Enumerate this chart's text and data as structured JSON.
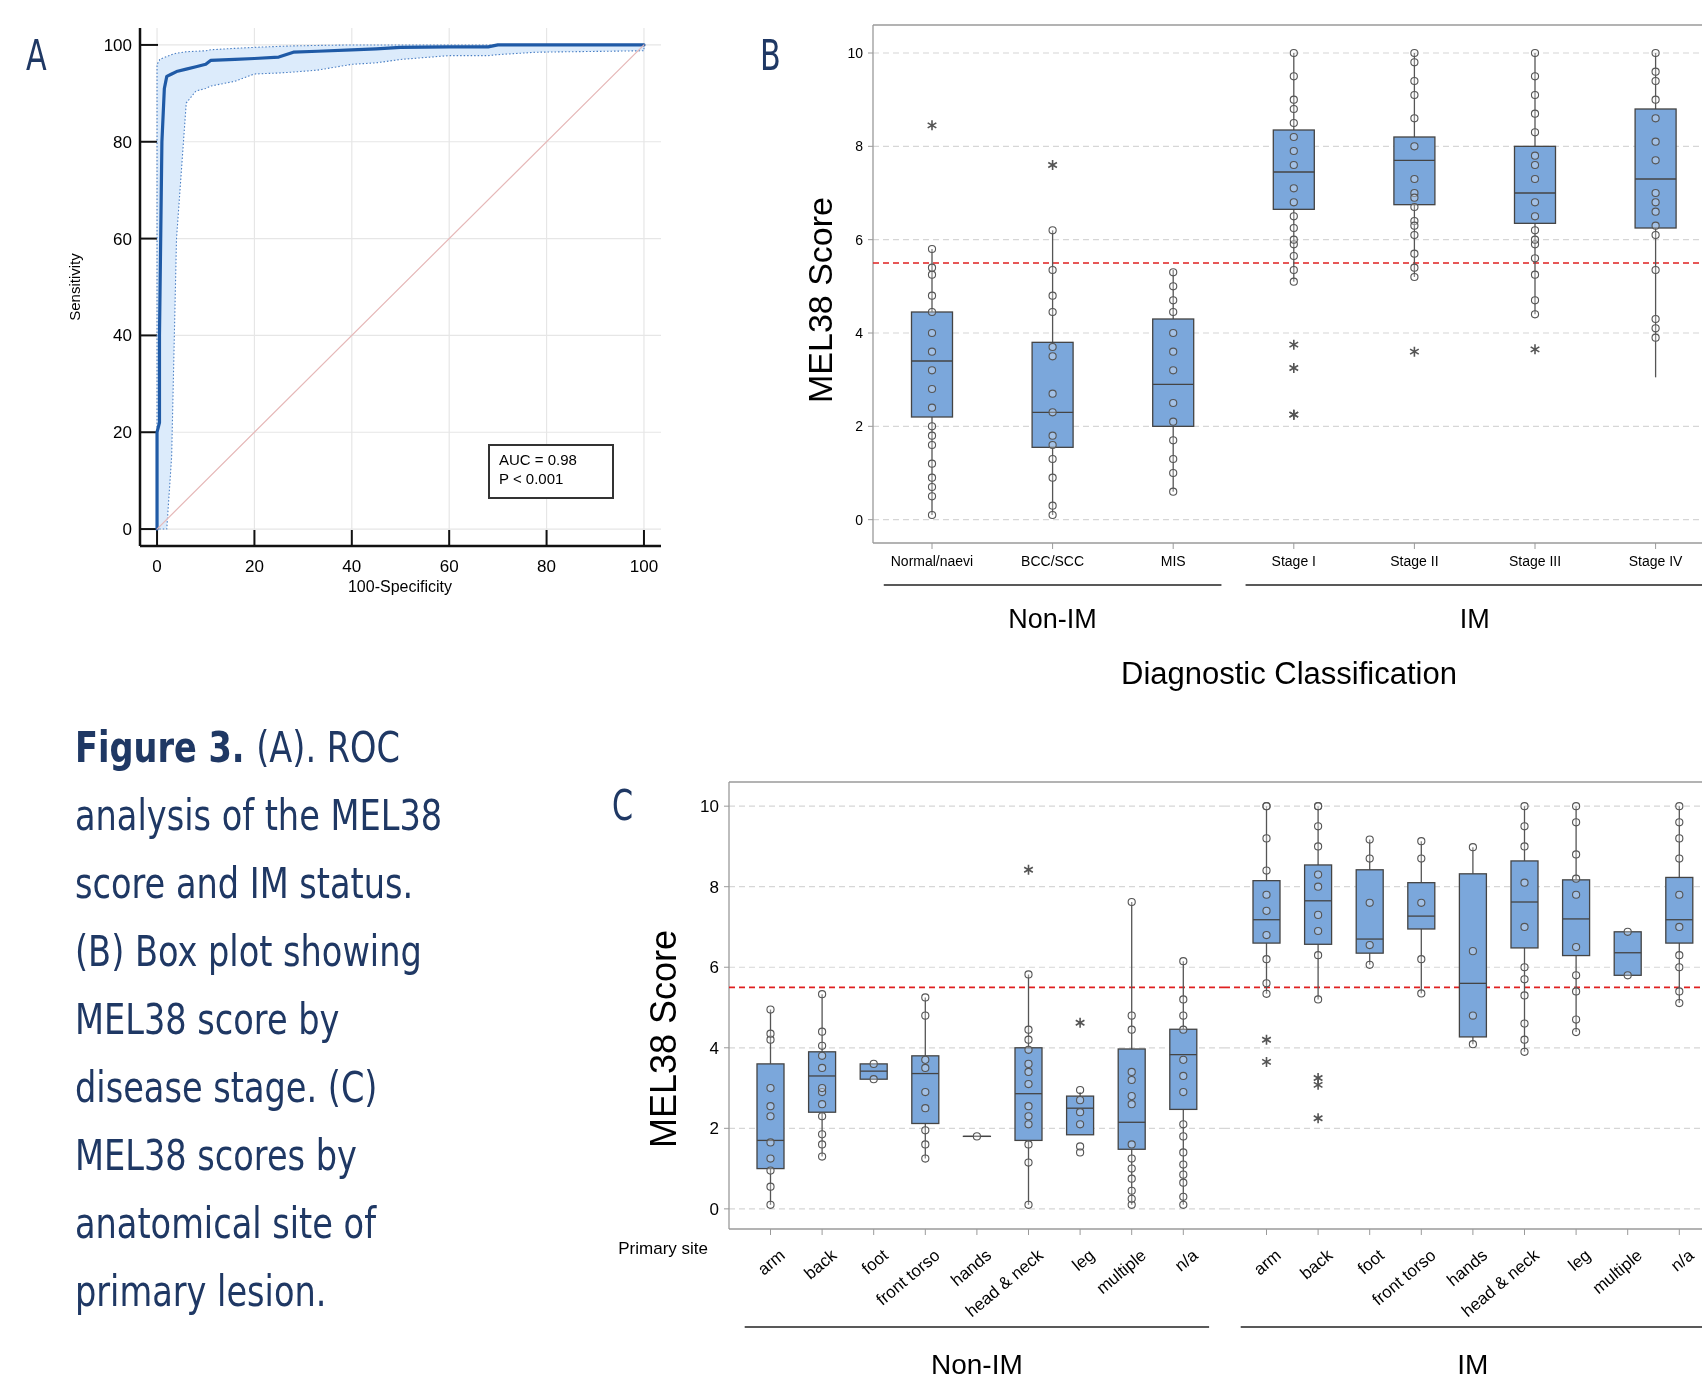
{
  "chart_data": [
    {
      "type": "line",
      "title": "A",
      "xlabel": "100-Specificity",
      "ylabel": "Sensitivity",
      "xlim": [
        -3.5,
        103.5
      ],
      "ylim": [
        -3.5,
        103.5
      ],
      "xticks": [
        0,
        20,
        40,
        60,
        80,
        100
      ],
      "yticks": [
        0,
        20,
        40,
        60,
        80,
        100
      ],
      "grid": true,
      "annotations": [
        "AUC = 0.98",
        "P < 0.001"
      ],
      "series": [
        {
          "color": "#1f5aa6",
          "x": [
            0,
            0,
            0.5,
            0.5,
            1,
            1.5,
            2,
            3,
            4,
            6,
            8,
            10,
            11,
            16,
            20,
            25,
            28,
            33,
            40,
            45,
            50,
            60,
            68,
            70,
            78,
            100
          ],
          "values": [
            0,
            20,
            22,
            40,
            80,
            91,
            93.5,
            94,
            94.5,
            95,
            95.5,
            96,
            96.8,
            97,
            97.2,
            97.5,
            98.5,
            98.7,
            99,
            99.2,
            99.5,
            99.6,
            99.6,
            100,
            100,
            100
          ],
          "lower": [
            0,
            0,
            0,
            0,
            0,
            0,
            0,
            15,
            60,
            88,
            90.5,
            91,
            91.5,
            92.5,
            94,
            94.2,
            94.4,
            94.8,
            96,
            96.3,
            97,
            97.8,
            97.8,
            98,
            98.5,
            98.8
          ],
          "upper": [
            0,
            96,
            96.8,
            97,
            97.2,
            97.4,
            97.6,
            98,
            98.3,
            98.6,
            98.7,
            98.8,
            99,
            99.3,
            99.5,
            99.7,
            99.8,
            99.9,
            100,
            100,
            100,
            100,
            100,
            100,
            100,
            100
          ]
        },
        {
          "color": "#e6b8b8",
          "x": [
            0,
            100
          ],
          "values": [
            0,
            100
          ]
        }
      ]
    },
    {
      "type": "box",
      "title": "B",
      "xlabel": "Diagnostic Classification",
      "ylabel": "MEL38 Score",
      "categories": [
        "Normal/naevi",
        "BCC/SCC",
        "MIS",
        "Stage I",
        "Stage II",
        "Stage III",
        "Stage IV"
      ],
      "ylim": [
        -0.5,
        10.6
      ],
      "yticks": [
        0,
        2,
        4,
        6,
        8,
        10
      ],
      "grid": "y",
      "annotations": [
        "Non-IM",
        "IM"
      ],
      "ref_lines": [
        {
          "axis": "y",
          "value": 5.5,
          "color": "#e02020",
          "line_style": "dashed"
        }
      ],
      "series": [
        {
          "type": "box",
          "color": "#7ba7db",
          "boxes": [
            {
              "low": 0.1,
              "q1": 2.2,
              "median": 3.4,
              "q3": 4.45,
              "high": 5.8,
              "outliers": [
                8.45
              ]
            },
            {
              "low": 0.1,
              "q1": 1.55,
              "median": 2.3,
              "q3": 3.8,
              "high": 6.2,
              "outliers": [
                7.6
              ]
            },
            {
              "low": 0.6,
              "q1": 2.0,
              "median": 2.9,
              "q3": 4.3,
              "high": 5.35
            },
            {
              "low": 5.1,
              "q1": 6.65,
              "median": 7.45,
              "q3": 8.35,
              "high": 10,
              "outliers": [
                3.75,
                3.25,
                2.25,
                2.25
              ]
            },
            {
              "low": 5.2,
              "q1": 6.75,
              "median": 7.7,
              "q3": 8.2,
              "high": 10,
              "outliers": [
                3.6
              ]
            },
            {
              "low": 4.4,
              "q1": 6.35,
              "median": 7.0,
              "q3": 8.0,
              "high": 10,
              "outliers": [
                3.65
              ]
            },
            {
              "low": 3.05,
              "q1": 6.25,
              "median": 7.3,
              "q3": 8.8,
              "high": 10
            }
          ]
        },
        {
          "type": "scatter",
          "color": "#555555",
          "marker": "circle",
          "x": [
            "Normal/naevi",
            "Normal/naevi",
            "Normal/naevi",
            "Normal/naevi",
            "Normal/naevi",
            "Normal/naevi",
            "Normal/naevi",
            "Normal/naevi",
            "Normal/naevi",
            "Normal/naevi",
            "Normal/naevi",
            "Normal/naevi",
            "Normal/naevi",
            "Normal/naevi",
            "Normal/naevi",
            "Normal/naevi",
            "Normal/naevi",
            "Normal/naevi",
            "BCC/SCC",
            "BCC/SCC",
            "BCC/SCC",
            "BCC/SCC",
            "BCC/SCC",
            "BCC/SCC",
            "BCC/SCC",
            "BCC/SCC",
            "BCC/SCC",
            "BCC/SCC",
            "BCC/SCC",
            "BCC/SCC",
            "BCC/SCC",
            "BCC/SCC",
            "MIS",
            "MIS",
            "MIS",
            "MIS",
            "MIS",
            "MIS",
            "MIS",
            "MIS",
            "MIS",
            "MIS",
            "MIS",
            "MIS",
            "MIS",
            "Stage I",
            "Stage I",
            "Stage I",
            "Stage I",
            "Stage I",
            "Stage I",
            "Stage I",
            "Stage I",
            "Stage I",
            "Stage I",
            "Stage I",
            "Stage I",
            "Stage I",
            "Stage I",
            "Stage I",
            "Stage I",
            "Stage I",
            "Stage II",
            "Stage II",
            "Stage II",
            "Stage II",
            "Stage II",
            "Stage II",
            "Stage II",
            "Stage II",
            "Stage II",
            "Stage II",
            "Stage II",
            "Stage II",
            "Stage II",
            "Stage II",
            "Stage II",
            "Stage II",
            "Stage III",
            "Stage III",
            "Stage III",
            "Stage III",
            "Stage III",
            "Stage III",
            "Stage III",
            "Stage III",
            "Stage III",
            "Stage III",
            "Stage III",
            "Stage III",
            "Stage III",
            "Stage III",
            "Stage III",
            "Stage III",
            "Stage III",
            "Stage IV",
            "Stage IV",
            "Stage IV",
            "Stage IV",
            "Stage IV",
            "Stage IV",
            "Stage IV",
            "Stage IV",
            "Stage IV",
            "Stage IV",
            "Stage IV",
            "Stage IV",
            "Stage IV",
            "Stage IV",
            "Stage IV",
            "Stage IV"
          ],
          "values": [
            0.1,
            0.5,
            0.9,
            1.2,
            1.6,
            1.8,
            2.0,
            2.4,
            2.8,
            3.2,
            3.6,
            4.0,
            4.45,
            4.8,
            5.25,
            5.4,
            5.8,
            0.7,
            0.1,
            0.3,
            0.9,
            1.3,
            1.6,
            1.8,
            2.7,
            3.5,
            3.7,
            4.45,
            4.8,
            5.35,
            6.2,
            2.3,
            0.6,
            1.0,
            1.3,
            1.7,
            2.1,
            2.5,
            3.2,
            3.6,
            4.0,
            4.45,
            4.7,
            5.0,
            5.3,
            5.1,
            5.35,
            5.65,
            5.9,
            6.25,
            6.5,
            6.8,
            7.1,
            7.6,
            7.9,
            8.2,
            8.5,
            8.8,
            9.0,
            9.5,
            10,
            6.0,
            5.2,
            5.4,
            5.7,
            6.1,
            6.4,
            6.7,
            7.0,
            7.3,
            8.0,
            8.6,
            9.1,
            9.4,
            9.8,
            10,
            6.3,
            6.9,
            4.4,
            4.7,
            5.25,
            5.6,
            5.9,
            6.2,
            6.5,
            6.8,
            7.3,
            7.6,
            8.3,
            8.7,
            9.1,
            9.5,
            10,
            6.0,
            7.8,
            3.9,
            4.1,
            4.3,
            5.35,
            6.1,
            6.3,
            6.6,
            7.0,
            7.7,
            8.1,
            8.6,
            9.0,
            9.4,
            9.6,
            10,
            6.8
          ]
        }
      ]
    },
    {
      "type": "box",
      "title": "C",
      "xlabel": "Primary site",
      "ylabel": "MEL38 Score",
      "categories": [
        "arm",
        "back",
        "foot",
        "front torso",
        "hands",
        "head & neck",
        "leg",
        "multiple",
        "n/a"
      ],
      "ylim": [
        -0.5,
        10.6
      ],
      "yticks": [
        0,
        2,
        4,
        6,
        8,
        10
      ],
      "grid": "y",
      "annotations": [
        "Non-IM"
      ],
      "ref_lines": [
        {
          "axis": "y",
          "value": 5.5,
          "color": "#e02020",
          "line_style": "dashed"
        }
      ],
      "series": [
        {
          "type": "box",
          "color": "#7ba7db",
          "boxes": [
            {
              "low": 0.1,
              "q1": 1.0,
              "median": 1.7,
              "q3": 3.6,
              "high": 4.95
            },
            {
              "low": 1.3,
              "q1": 2.4,
              "median": 3.3,
              "q3": 3.9,
              "high": 5.33
            },
            {
              "low": 3.22,
              "q1": 3.22,
              "median": 3.42,
              "q3": 3.6,
              "high": 3.6
            },
            {
              "low": 1.25,
              "q1": 2.12,
              "median": 3.36,
              "q3": 3.8,
              "high": 5.25
            },
            {
              "low": 1.8,
              "q1": 1.8,
              "median": 1.8,
              "q3": 1.8,
              "high": 1.8
            },
            {
              "low": 0.1,
              "q1": 1.7,
              "median": 2.86,
              "q3": 4.0,
              "high": 5.82,
              "outliers": [
                8.42
              ]
            },
            {
              "low": 1.84,
              "q1": 1.84,
              "median": 2.5,
              "q3": 2.8,
              "high": 2.9,
              "outliers": [
                4.62
              ]
            },
            {
              "low": 0.1,
              "q1": 1.48,
              "median": 2.15,
              "q3": 3.97,
              "high": 7.62
            },
            {
              "low": 0.1,
              "q1": 2.47,
              "median": 3.83,
              "q3": 4.46,
              "high": 6.15
            }
          ]
        },
        {
          "type": "scatter",
          "color": "#555555",
          "marker": "circle",
          "x": [
            "arm",
            "arm",
            "arm",
            "arm",
            "arm",
            "arm",
            "arm",
            "arm",
            "arm",
            "arm",
            "arm",
            "back",
            "back",
            "back",
            "back",
            "back",
            "back",
            "back",
            "back",
            "back",
            "back",
            "back",
            "back",
            "foot",
            "foot",
            "front torso",
            "front torso",
            "front torso",
            "front torso",
            "front torso",
            "front torso",
            "front torso",
            "front torso",
            "front torso",
            "hands",
            "head & neck",
            "head & neck",
            "head & neck",
            "head & neck",
            "head & neck",
            "head & neck",
            "head & neck",
            "head & neck",
            "head & neck",
            "head & neck",
            "head & neck",
            "head & neck",
            "head & neck",
            "leg",
            "leg",
            "leg",
            "leg",
            "leg",
            "leg",
            "multiple",
            "multiple",
            "multiple",
            "multiple",
            "multiple",
            "multiple",
            "multiple",
            "multiple",
            "multiple",
            "multiple",
            "multiple",
            "multiple",
            "multiple",
            "multiple",
            "n/a",
            "n/a",
            "n/a",
            "n/a",
            "n/a",
            "n/a",
            "n/a",
            "n/a",
            "n/a",
            "n/a",
            "n/a",
            "n/a",
            "n/a",
            "n/a",
            "n/a"
          ],
          "values": [
            0.1,
            0.55,
            0.95,
            1.25,
            1.65,
            2.3,
            2.55,
            3.0,
            4.2,
            4.35,
            4.95,
            1.3,
            1.6,
            1.85,
            2.3,
            2.6,
            2.9,
            3.5,
            3.8,
            4.05,
            4.4,
            5.33,
            3.0,
            3.22,
            3.6,
            1.25,
            1.6,
            1.95,
            2.5,
            2.9,
            3.5,
            3.7,
            4.8,
            5.25,
            1.8,
            0.1,
            1.15,
            1.6,
            2.1,
            2.3,
            2.55,
            3.1,
            3.4,
            3.6,
            4.2,
            4.45,
            5.82,
            3.95,
            1.4,
            1.55,
            2.1,
            2.4,
            2.7,
            2.95,
            0.1,
            0.25,
            0.45,
            0.75,
            1.0,
            1.25,
            1.6,
            2.6,
            2.8,
            3.2,
            3.4,
            4.45,
            4.8,
            7.62,
            0.1,
            0.3,
            0.65,
            0.85,
            1.1,
            1.4,
            1.8,
            2.1,
            2.9,
            3.3,
            3.7,
            4.45,
            4.8,
            5.2,
            6.15
          ]
        }
      ]
    },
    {
      "type": "box",
      "categories": [
        "arm",
        "back",
        "foot",
        "front torso",
        "hands",
        "head & neck",
        "leg",
        "multiple",
        "n/a"
      ],
      "ylim": [
        -0.5,
        10.6
      ],
      "yticks": [
        0,
        2,
        4,
        6,
        8,
        10
      ],
      "grid": "y",
      "tick_labels": "x",
      "annotations": [
        "IM"
      ],
      "ref_lines": [
        {
          "axis": "y",
          "value": 5.5,
          "color": "#e02020",
          "line_style": "dashed"
        }
      ],
      "series": [
        {
          "type": "box",
          "color": "#7ba7db",
          "boxes": [
            {
              "low": 5.34,
              "q1": 6.6,
              "median": 7.18,
              "q3": 8.15,
              "high": 10,
              "outliers": [
                4.2,
                3.65
              ]
            },
            {
              "low": 5.2,
              "q1": 6.57,
              "median": 7.65,
              "q3": 8.54,
              "high": 10,
              "outliers": [
                3.25,
                3.08,
                2.25
              ]
            },
            {
              "low": 6.06,
              "q1": 6.35,
              "median": 6.7,
              "q3": 8.42,
              "high": 9.17
            },
            {
              "low": 5.35,
              "q1": 6.95,
              "median": 7.27,
              "q3": 8.1,
              "high": 9.13
            },
            {
              "low": 4.09,
              "q1": 4.27,
              "median": 5.6,
              "q3": 8.32,
              "high": 8.98
            },
            {
              "low": 3.9,
              "q1": 6.48,
              "median": 7.62,
              "q3": 8.64,
              "high": 10
            },
            {
              "low": 4.39,
              "q1": 6.29,
              "median": 7.2,
              "q3": 8.17,
              "high": 10
            },
            {
              "low": 5.8,
              "q1": 5.8,
              "median": 6.36,
              "q3": 6.88,
              "high": 6.88
            },
            {
              "low": 5.11,
              "q1": 6.6,
              "median": 7.18,
              "q3": 8.23,
              "high": 10
            }
          ]
        },
        {
          "type": "scatter",
          "color": "#555555",
          "marker": "circle",
          "x": [
            "arm",
            "arm",
            "arm",
            "arm",
            "arm",
            "arm",
            "arm",
            "arm",
            "arm",
            "arm",
            "back",
            "back",
            "back",
            "back",
            "back",
            "back",
            "back",
            "back",
            "back",
            "back",
            "foot",
            "foot",
            "foot",
            "foot",
            "foot",
            "front torso",
            "front torso",
            "front torso",
            "front torso",
            "front torso",
            "hands",
            "hands",
            "hands",
            "hands",
            "head & neck",
            "head & neck",
            "head & neck",
            "head & neck",
            "head & neck",
            "head & neck",
            "head & neck",
            "head & neck",
            "head & neck",
            "head & neck",
            "head & neck",
            "leg",
            "leg",
            "leg",
            "leg",
            "leg",
            "leg",
            "leg",
            "leg",
            "leg",
            "leg",
            "multiple",
            "multiple",
            "n/a",
            "n/a",
            "n/a",
            "n/a",
            "n/a",
            "n/a",
            "n/a",
            "n/a",
            "n/a",
            "n/a"
          ],
          "values": [
            5.34,
            5.6,
            6.2,
            6.8,
            7.4,
            7.8,
            8.4,
            9.2,
            10,
            10,
            5.2,
            6.3,
            6.9,
            7.3,
            8.0,
            8.3,
            9.0,
            9.5,
            10,
            10,
            6.06,
            6.55,
            7.6,
            8.7,
            9.17,
            5.35,
            6.2,
            7.6,
            8.7,
            9.13,
            4.09,
            4.8,
            6.4,
            8.98,
            3.9,
            4.2,
            4.6,
            5.3,
            5.7,
            6.0,
            7.0,
            8.1,
            9.0,
            9.5,
            10,
            4.39,
            4.7,
            5.4,
            5.8,
            6.5,
            7.8,
            8.2,
            8.8,
            9.6,
            10,
            5.8,
            6.88,
            5.11,
            5.4,
            6.0,
            6.3,
            7.8,
            8.7,
            9.2,
            9.6,
            10,
            7.0
          ]
        }
      ]
    },
    {
      "type": "other",
      "title": "Figure 3.",
      "subtitle": "(A). ROC analysis of the MEL38 score and IM status. (B) Box plot showing MEL38 score by disease stage. (C) MEL38 scores by anatomical site of primary lesion."
    }
  ]
}
